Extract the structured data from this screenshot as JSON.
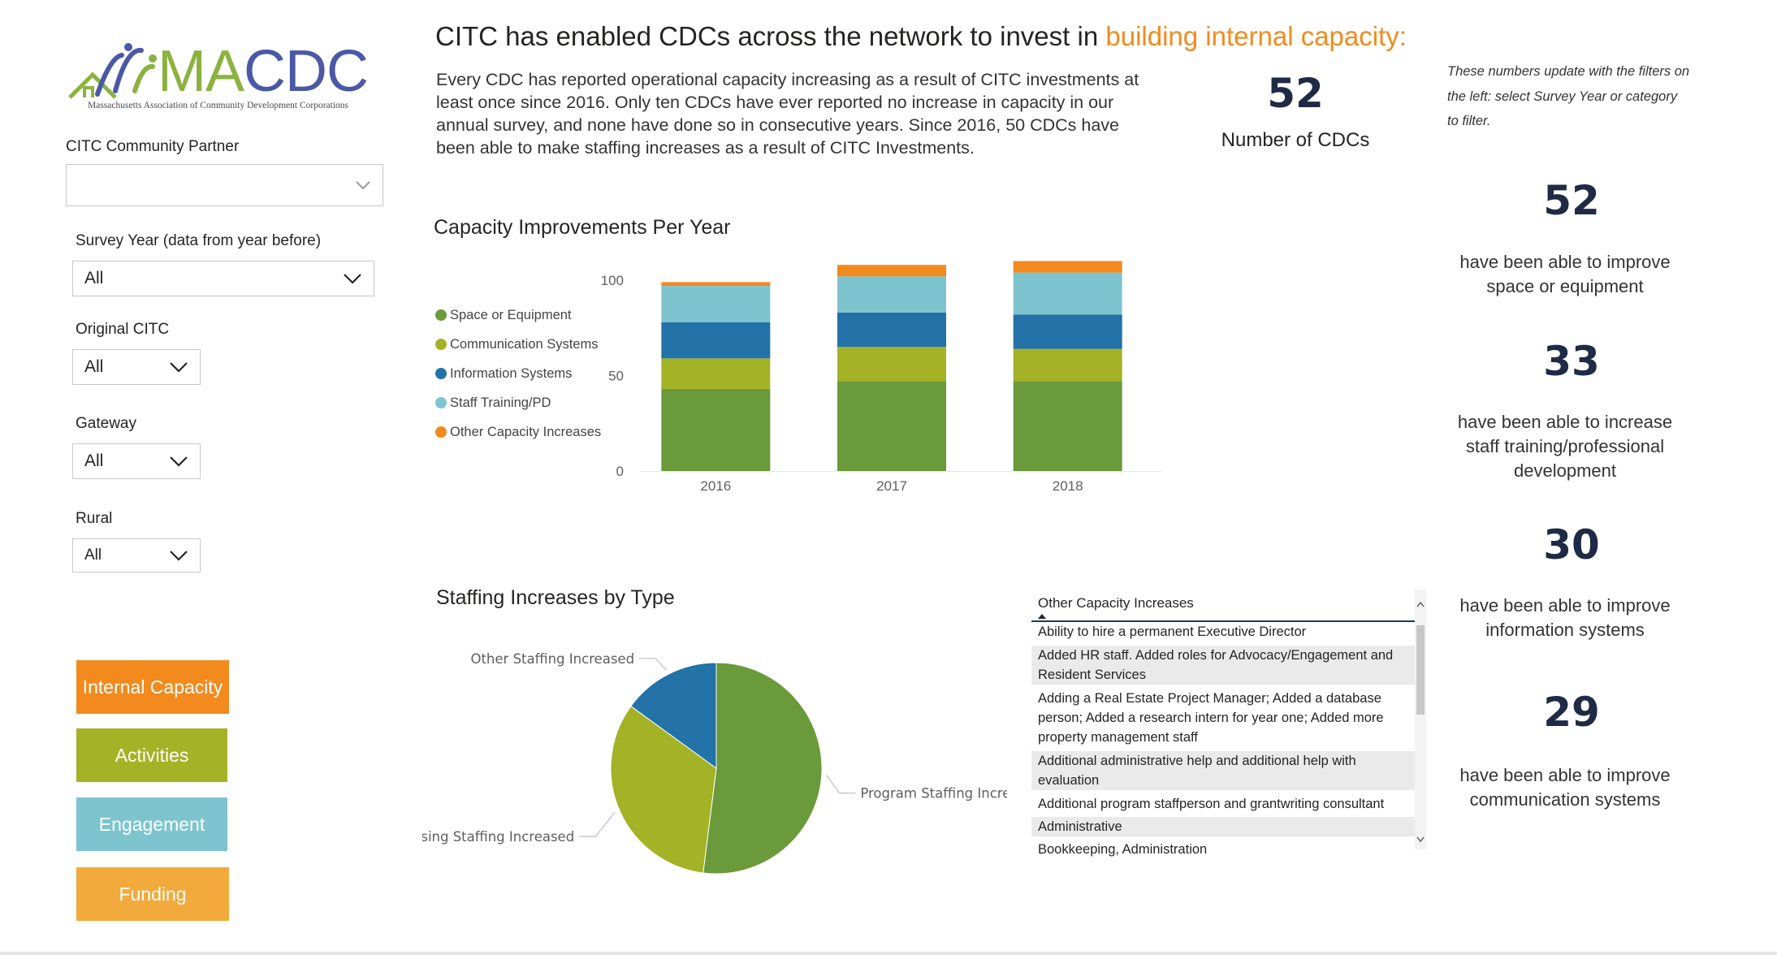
{
  "logo": {
    "text_ma": "MA",
    "text_cdc": "CDC",
    "subtitle": "Massachusetts Association of Community Development Corporations"
  },
  "filters": {
    "partner": {
      "label": "CITC Community Partner",
      "value": ""
    },
    "survey_year": {
      "label": "Survey Year (data from year before)",
      "value": "All"
    },
    "original_citc": {
      "label": "Original CITC",
      "value": "All"
    },
    "gateway": {
      "label": "Gateway",
      "value": "All"
    },
    "rural": {
      "label": "Rural",
      "value": "All"
    }
  },
  "nav": [
    {
      "label": "Internal Capacity",
      "color": "#f28a1e"
    },
    {
      "label": "Activities",
      "color": "#a4b226"
    },
    {
      "label": "Engagement",
      "color": "#7ec4cf"
    },
    {
      "label": "Funding",
      "color": "#f2aa3c"
    }
  ],
  "header": {
    "headline_prefix": "CITC has enabled CDCs across the network to invest in ",
    "headline_highlight": "building internal capacity:",
    "intro": "Every CDC has reported operational capacity increasing as a result of CITC investments at least once since 2016. Only ten CDCs have ever reported no increase in capacity in our annual survey, and none have done so in consecutive years. Since 2016, 50 CDCs have been able to make staffing increases as a result of CITC Investments."
  },
  "summary": {
    "value": "52",
    "label": "Number of CDCs"
  },
  "note": "These numbers update with the filters on the left: select Survey Year or category to filter.",
  "kpis": [
    {
      "value": "52",
      "label": "have been able to improve space or equipment"
    },
    {
      "value": "33",
      "label": "have been able to increase staff training/professional development"
    },
    {
      "value": "30",
      "label": "have been able to improve information systems"
    },
    {
      "value": "29",
      "label": "have been able to improve communication systems"
    }
  ],
  "chart_data": [
    {
      "type": "bar",
      "stacked": true,
      "title": "Capacity Improvements Per Year",
      "categories": [
        "2016",
        "2017",
        "2018"
      ],
      "series": [
        {
          "name": "Space or Equipment",
          "color": "#6a9a3a",
          "values": [
            43,
            47,
            47
          ]
        },
        {
          "name": "Communication Systems",
          "color": "#a4b226",
          "values": [
            16,
            18,
            17
          ]
        },
        {
          "name": "Information Systems",
          "color": "#2372a8",
          "values": [
            19,
            18,
            18
          ]
        },
        {
          "name": "Staff Training/PD",
          "color": "#7ec4cf",
          "values": [
            19,
            19,
            22
          ]
        },
        {
          "name": "Other Capacity Increases",
          "color": "#f28a1e",
          "values": [
            2,
            6,
            6
          ]
        }
      ],
      "yticks": [
        "0",
        "50",
        "100"
      ],
      "ylim": [
        0,
        100
      ],
      "legend": "left",
      "grid": false
    },
    {
      "type": "pie",
      "title": "Staffing Increases by Type",
      "slices": [
        {
          "name": "Program Staffing Increased",
          "color": "#6a9a3a",
          "value": 52
        },
        {
          "name": "Fundraising Staffing Increased",
          "color": "#a4b226",
          "value": 33
        },
        {
          "name": "Other Staffing Increased",
          "color": "#2372a8",
          "value": 15
        }
      ]
    }
  ],
  "table": {
    "header": "Other Capacity Increases",
    "rows": [
      "Ability to hire a permanent Executive Director",
      "Added HR staff. Added roles for Advocacy/Engagement and Resident Services",
      "Adding a Real Estate Project Manager; Added a database person; Added a research intern for year one; Added more property management staff",
      "Additional administrative help and additional help with evaluation",
      "Additional program staffperson and grantwriting consultant",
      "Administrative",
      "Bookkeeping, Administration"
    ]
  }
}
